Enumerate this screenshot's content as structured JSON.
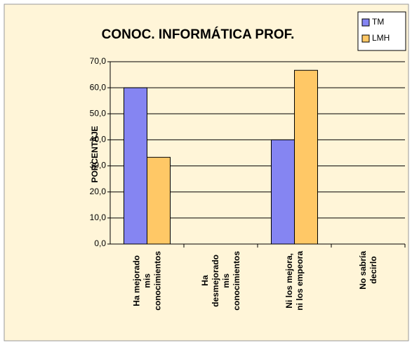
{
  "chart_data": {
    "type": "bar",
    "title": "CONOC.  INFORMÁTICA PROF.",
    "y_label": "PORCENTAJE",
    "categories": [
      "Ha mejorado\nmis\nconocimientos",
      "Ha\ndesmejorado\nmis\nconocimientos",
      "Ni los mejora,\nni los empeora",
      "No sabría\ndecirlo"
    ],
    "series": [
      {
        "name": "TM",
        "color": "#8585f2",
        "values": [
          60,
          0,
          40,
          0
        ]
      },
      {
        "name": "LMH",
        "color": "#ffc866",
        "values": [
          33.3,
          0,
          66.7,
          0
        ]
      }
    ],
    "ylim": [
      0,
      70
    ],
    "yticks": [
      {
        "value": 0,
        "label": "0,0"
      },
      {
        "value": 10,
        "label": "10,0"
      },
      {
        "value": 20,
        "label": "20,0"
      },
      {
        "value": 30,
        "label": "30,0"
      },
      {
        "value": 40,
        "label": "40,0"
      },
      {
        "value": 50,
        "label": "50,0"
      },
      {
        "value": 60,
        "label": "60,0"
      },
      {
        "value": 70,
        "label": "70,0"
      }
    ],
    "grid": true,
    "legend": "top-right"
  }
}
